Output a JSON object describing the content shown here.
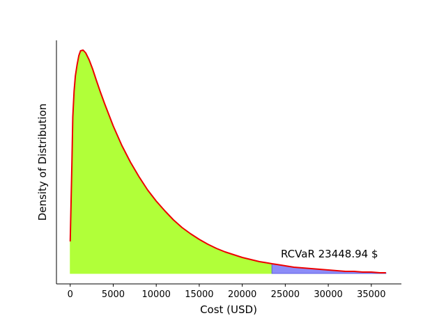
{
  "chart_data": {
    "type": "area",
    "title": "",
    "xlabel": "Cost (USD)",
    "ylabel": "Density of Distribution",
    "xlim": [
      -1600,
      38500
    ],
    "ylim": [
      -1.5e-06,
      3.35e-05
    ],
    "xticks": [
      0,
      5000,
      10000,
      15000,
      20000,
      25000,
      30000,
      35000
    ],
    "show_yticks": false,
    "grid": false,
    "threshold": 23448.94,
    "annotation": "RCVaR 23448.94 $",
    "colors": {
      "curve": "#ee0000",
      "body_fill": "#adff2f",
      "tail_fill": "#8080f8"
    },
    "series": [
      {
        "x": [
          0,
          200,
          300,
          450,
          600,
          800,
          1000,
          1200,
          1500,
          1800,
          2200,
          2600,
          3000,
          3500,
          4000,
          4500,
          5000,
          6000,
          7000,
          8000,
          9000,
          10000,
          11000,
          12000,
          13000,
          14000,
          15000,
          16000,
          17000,
          18000,
          19000,
          20000,
          21000,
          22000,
          23000,
          23448.94,
          24000,
          25000,
          26000,
          27000,
          28000,
          29000,
          30000,
          31000,
          32000,
          33000,
          34000,
          35000,
          36000,
          36700
        ],
        "y": [
          4.6e-06,
          1.6e-05,
          2.25e-05,
          2.62e-05,
          2.84e-05,
          3e-05,
          3.13e-05,
          3.2e-05,
          3.21e-05,
          3.17e-05,
          3.07e-05,
          2.94e-05,
          2.79e-05,
          2.61e-05,
          2.44e-05,
          2.28e-05,
          2.12e-05,
          1.84e-05,
          1.6e-05,
          1.39e-05,
          1.2e-05,
          1.04e-05,
          9e-06,
          7.7e-06,
          6.6e-06,
          5.7e-06,
          4.9e-06,
          4.2e-06,
          3.6e-06,
          3.1e-06,
          2.7e-06,
          2.3e-06,
          2e-06,
          1.7e-06,
          1.5e-06,
          1.4e-06,
          1.3e-06,
          1.1e-06,
          9e-07,
          8e-07,
          7e-07,
          6e-07,
          5e-07,
          4e-07,
          3e-07,
          3e-07,
          2e-07,
          2e-07,
          1e-07,
          1e-07
        ]
      }
    ]
  }
}
